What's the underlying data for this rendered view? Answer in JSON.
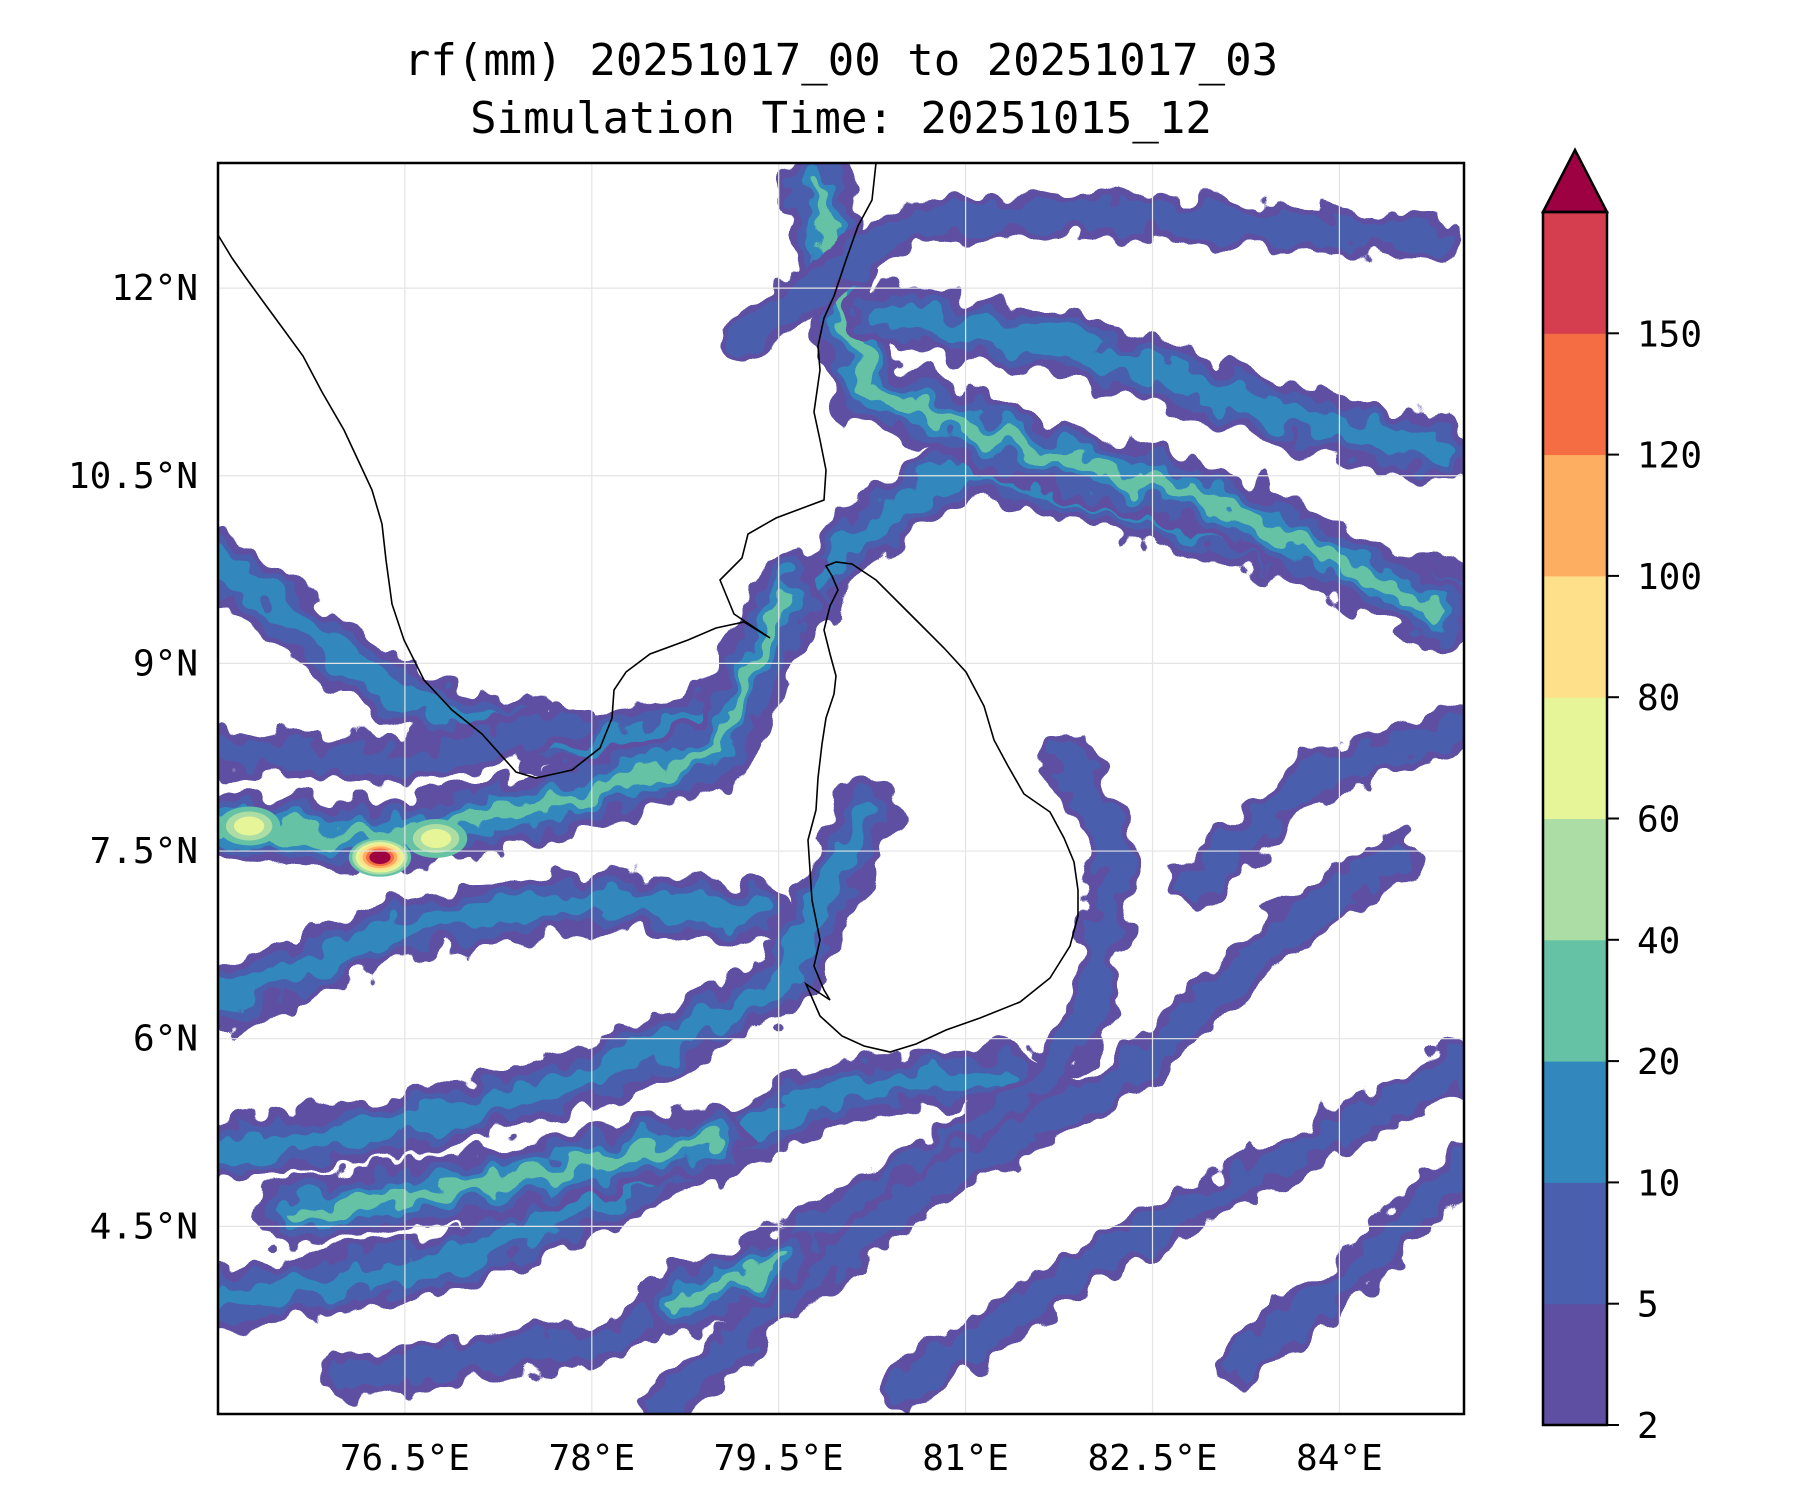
{
  "title": "rf(mm) 20251017_00 to 20251017_03",
  "subtitle": "Simulation Time: 20251015_12",
  "map": {
    "extent": {
      "lon": [
        75.0,
        85.0
      ],
      "lat": [
        3.0,
        13.0
      ]
    },
    "x_ticks": [
      {
        "value": 76.5,
        "label": "76.5°E"
      },
      {
        "value": 78.0,
        "label": "78°E"
      },
      {
        "value": 79.5,
        "label": "79.5°E"
      },
      {
        "value": 81.0,
        "label": "81°E"
      },
      {
        "value": 82.5,
        "label": "82.5°E"
      },
      {
        "value": 84.0,
        "label": "84°E"
      }
    ],
    "y_ticks": [
      {
        "value": 12.0,
        "label": "12°N"
      },
      {
        "value": 10.5,
        "label": "10.5°N"
      },
      {
        "value": 9.0,
        "label": "9°N"
      },
      {
        "value": 7.5,
        "label": "7.5°N"
      },
      {
        "value": 6.0,
        "label": "6°N"
      },
      {
        "value": 4.5,
        "label": "4.5°N"
      }
    ],
    "gridlines": true,
    "coastline_color": "#000000",
    "rain_bands": [
      {
        "points": [
          [
            75.0,
            9.8
          ],
          [
            76.5,
            8.7
          ],
          [
            78.0,
            8.3
          ],
          [
            79.0,
            8.6
          ],
          [
            80.0,
            9.9
          ],
          [
            81.0,
            10.6
          ],
          [
            82.5,
            10.2
          ],
          [
            85.0,
            9.5
          ]
        ],
        "level": 10
      },
      {
        "points": [
          [
            75.0,
            7.7
          ],
          [
            76.3,
            7.6
          ],
          [
            77.8,
            7.9
          ],
          [
            79.0,
            8.3
          ],
          [
            79.6,
            9.6
          ]
        ],
        "level": 20
      },
      {
        "points": [
          [
            79.8,
            12.8
          ],
          [
            80.2,
            11.2
          ],
          [
            81.5,
            10.7
          ],
          [
            83.0,
            10.3
          ],
          [
            84.8,
            9.4
          ]
        ],
        "level": 20
      },
      {
        "points": [
          [
            79.2,
            11.6
          ],
          [
            80.5,
            12.5
          ],
          [
            82.0,
            12.6
          ],
          [
            84.8,
            12.4
          ]
        ],
        "level": 5
      },
      {
        "points": [
          [
            80.3,
            11.8
          ],
          [
            82.0,
            11.5
          ],
          [
            83.5,
            11.0
          ],
          [
            84.8,
            10.7
          ]
        ],
        "level": 10
      },
      {
        "points": [
          [
            75.0,
            6.3
          ],
          [
            76.5,
            6.9
          ],
          [
            78.0,
            7.1
          ],
          [
            79.3,
            7.0
          ]
        ],
        "level": 10
      },
      {
        "points": [
          [
            75.0,
            5.1
          ],
          [
            76.5,
            5.3
          ],
          [
            78.0,
            5.7
          ],
          [
            79.5,
            6.4
          ],
          [
            80.2,
            7.8
          ]
        ],
        "level": 10
      },
      {
        "points": [
          [
            75.0,
            3.9
          ],
          [
            76.8,
            4.2
          ],
          [
            78.5,
            4.9
          ],
          [
            80.0,
            5.6
          ],
          [
            81.3,
            5.7
          ]
        ],
        "level": 10
      },
      {
        "points": [
          [
            76.0,
            3.3
          ],
          [
            78.2,
            3.6
          ],
          [
            79.8,
            4.5
          ],
          [
            81.5,
            5.5
          ],
          [
            82.0,
            6.2
          ],
          [
            82.2,
            7.5
          ],
          [
            81.8,
            8.3
          ]
        ],
        "level": 5
      },
      {
        "points": [
          [
            78.6,
            3.1
          ],
          [
            79.5,
            3.9
          ],
          [
            80.8,
            4.9
          ],
          [
            82.3,
            5.7
          ],
          [
            83.5,
            6.8
          ],
          [
            84.5,
            7.5
          ]
        ],
        "level": 5
      },
      {
        "points": [
          [
            80.5,
            3.2
          ],
          [
            82.0,
            4.2
          ],
          [
            83.5,
            5.0
          ],
          [
            85.0,
            5.8
          ]
        ],
        "level": 5
      },
      {
        "points": [
          [
            82.8,
            7.2
          ],
          [
            83.8,
            8.1
          ],
          [
            85.0,
            8.5
          ]
        ],
        "level": 5
      },
      {
        "points": [
          [
            83.2,
            3.4
          ],
          [
            84.2,
            4.2
          ],
          [
            85.0,
            5.0
          ]
        ],
        "level": 5
      },
      {
        "points": [
          [
            75.0,
            8.3
          ],
          [
            76.5,
            8.2
          ],
          [
            77.8,
            8.5
          ]
        ],
        "level": 5
      },
      {
        "points": [
          [
            75.6,
            4.6
          ],
          [
            77.5,
            4.9
          ],
          [
            79.0,
            5.2
          ]
        ],
        "level": 20
      },
      {
        "points": [
          [
            78.7,
            3.9
          ],
          [
            79.5,
            4.2
          ]
        ],
        "level": 20
      }
    ],
    "hot_spots": [
      {
        "lon": 76.3,
        "lat": 7.45,
        "level": 150
      },
      {
        "lon": 76.75,
        "lat": 7.6,
        "level": 60
      },
      {
        "lon": 75.25,
        "lat": 7.7,
        "level": 60
      }
    ]
  },
  "colorbar": {
    "levels": [
      2,
      5,
      10,
      20,
      40,
      60,
      80,
      100,
      120,
      150
    ],
    "labels": [
      "2",
      "5",
      "10",
      "20",
      "40",
      "60",
      "80",
      "100",
      "120",
      "150"
    ],
    "colors": [
      "#5e4fa2",
      "#4a5fad",
      "#3288bd",
      "#66c2a5",
      "#abdda4",
      "#e6f598",
      "#fee08b",
      "#fdae61",
      "#f46d43",
      "#d53e4f"
    ],
    "extend_color": "#9e0142",
    "extend": "max"
  }
}
